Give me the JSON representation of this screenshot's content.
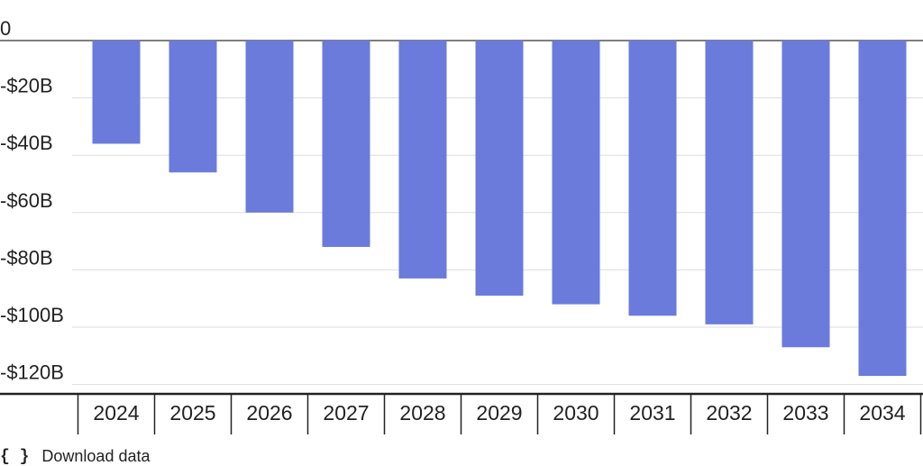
{
  "chart_data": {
    "type": "bar",
    "categories": [
      "2024",
      "2025",
      "2026",
      "2027",
      "2028",
      "2029",
      "2030",
      "2031",
      "2032",
      "2033",
      "2034"
    ],
    "values": [
      -36,
      -46,
      -60,
      -72,
      -83,
      -89,
      -92,
      -96,
      -99,
      -107,
      -117
    ],
    "ylim": [
      -123,
      0
    ],
    "yticks": [
      0,
      -20,
      -40,
      -60,
      -80,
      -100,
      -120
    ],
    "ytick_labels": [
      "0",
      "-$20B",
      "-$40B",
      "-$60B",
      "-$80B",
      "-$100B",
      "-$120B"
    ],
    "bar_color": "#6a7bdc",
    "grid": true
  },
  "footer": {
    "icon": "{ }",
    "label": "Download data"
  }
}
